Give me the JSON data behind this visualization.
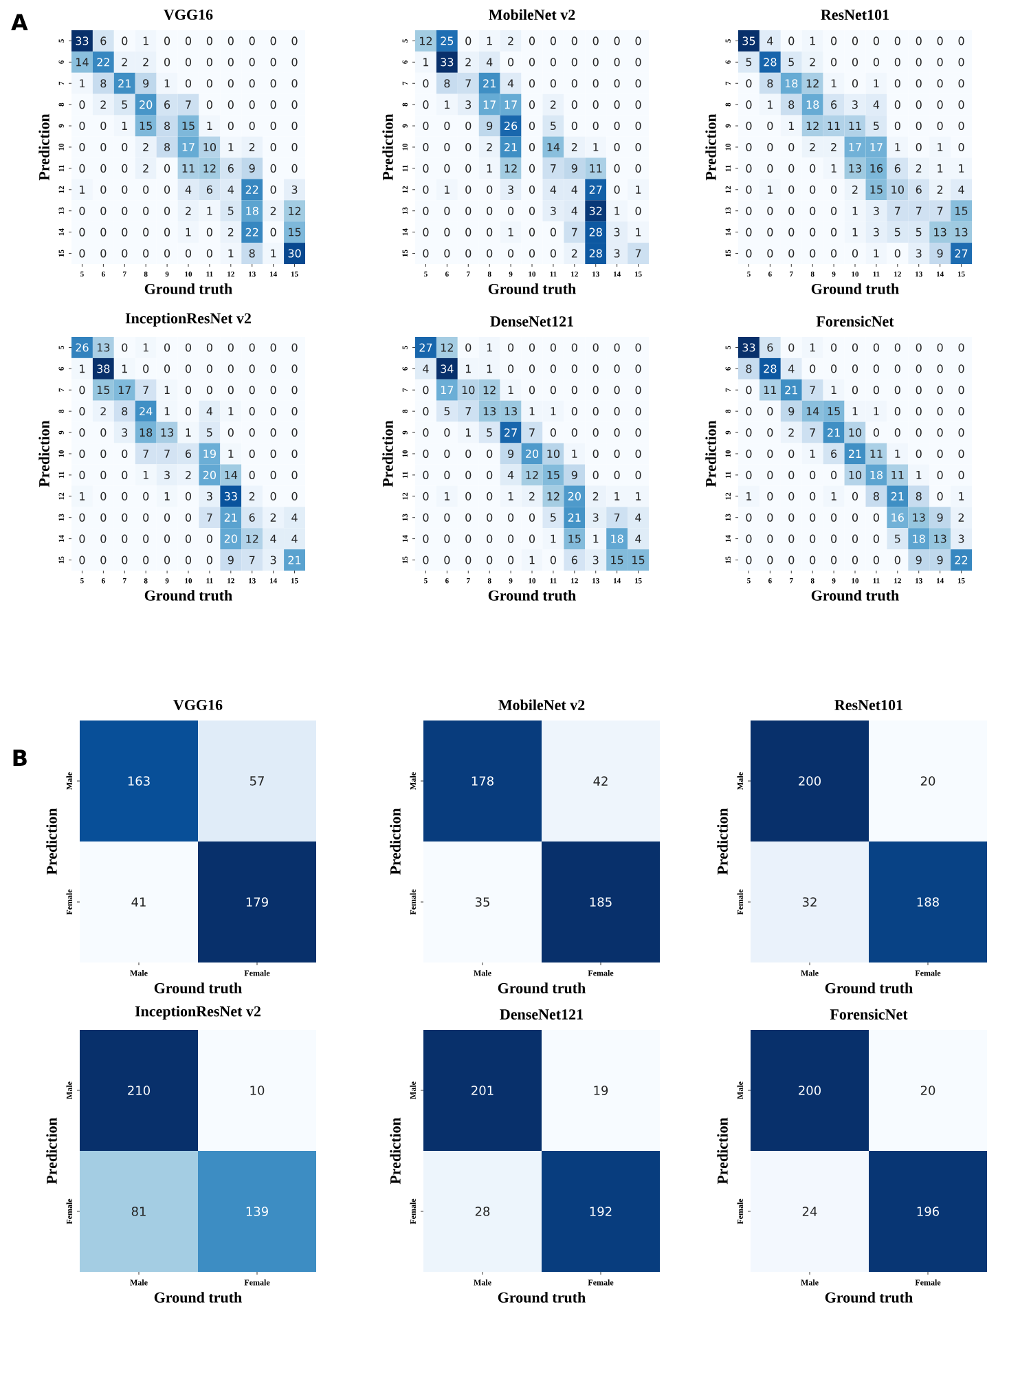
{
  "chart_data": [
    {
      "type": "heatmap",
      "title": "VGG16",
      "xlabel": "Ground truth",
      "ylabel": "Prediction",
      "annotations": [
        "A"
      ],
      "data_labels": true,
      "categories": [
        "5",
        "6",
        "7",
        "8",
        "9",
        "10",
        "11",
        "12",
        "13",
        "14",
        "15"
      ],
      "y_categories": [
        "5",
        "6",
        "7",
        "8",
        "9",
        "10",
        "11",
        "12",
        "13",
        "14",
        "15"
      ],
      "cells": [
        [
          33,
          6,
          0,
          1,
          0,
          0,
          0,
          0,
          0,
          0,
          0
        ],
        [
          14,
          22,
          2,
          2,
          0,
          0,
          0,
          0,
          0,
          0,
          0
        ],
        [
          1,
          8,
          21,
          9,
          1,
          0,
          0,
          0,
          0,
          0,
          0
        ],
        [
          0,
          2,
          5,
          20,
          6,
          7,
          0,
          0,
          0,
          0,
          0
        ],
        [
          0,
          0,
          1,
          15,
          8,
          15,
          1,
          0,
          0,
          0,
          0
        ],
        [
          0,
          0,
          0,
          2,
          8,
          17,
          10,
          1,
          2,
          0,
          0
        ],
        [
          0,
          0,
          0,
          2,
          0,
          11,
          12,
          6,
          9,
          0,
          0
        ],
        [
          1,
          0,
          0,
          0,
          0,
          4,
          6,
          4,
          22,
          0,
          3
        ],
        [
          0,
          0,
          0,
          0,
          0,
          2,
          1,
          5,
          18,
          2,
          12
        ],
        [
          0,
          0,
          0,
          0,
          0,
          1,
          0,
          2,
          22,
          0,
          15
        ],
        [
          0,
          0,
          0,
          0,
          0,
          0,
          0,
          1,
          8,
          1,
          30
        ]
      ]
    },
    {
      "type": "heatmap",
      "title": "MobileNet v2",
      "xlabel": "Ground truth",
      "ylabel": "Prediction",
      "data_labels": true,
      "categories": [
        "5",
        "6",
        "7",
        "8",
        "9",
        "10",
        "11",
        "12",
        "13",
        "14",
        "15"
      ],
      "y_categories": [
        "5",
        "6",
        "7",
        "8",
        "9",
        "10",
        "11",
        "12",
        "13",
        "14",
        "15"
      ],
      "cells": [
        [
          12,
          25,
          0,
          1,
          2,
          0,
          0,
          0,
          0,
          0,
          0
        ],
        [
          1,
          33,
          2,
          4,
          0,
          0,
          0,
          0,
          0,
          0,
          0
        ],
        [
          0,
          8,
          7,
          21,
          4,
          0,
          0,
          0,
          0,
          0,
          0
        ],
        [
          0,
          1,
          3,
          17,
          17,
          0,
          2,
          0,
          0,
          0,
          0
        ],
        [
          0,
          0,
          0,
          9,
          26,
          0,
          5,
          0,
          0,
          0,
          0
        ],
        [
          0,
          0,
          0,
          2,
          21,
          0,
          14,
          2,
          1,
          0,
          0
        ],
        [
          0,
          0,
          0,
          1,
          12,
          0,
          7,
          9,
          11,
          0,
          0
        ],
        [
          0,
          1,
          0,
          0,
          3,
          0,
          4,
          4,
          27,
          0,
          1
        ],
        [
          0,
          0,
          0,
          0,
          0,
          0,
          3,
          4,
          32,
          1,
          0
        ],
        [
          0,
          0,
          0,
          0,
          1,
          0,
          0,
          7,
          28,
          3,
          1
        ],
        [
          0,
          0,
          0,
          0,
          0,
          0,
          0,
          2,
          28,
          3,
          7
        ]
      ]
    },
    {
      "type": "heatmap",
      "title": "ResNet101",
      "xlabel": "Ground truth",
      "ylabel": "Prediction",
      "data_labels": true,
      "categories": [
        "5",
        "6",
        "7",
        "8",
        "9",
        "10",
        "11",
        "12",
        "13",
        "14",
        "15"
      ],
      "y_categories": [
        "5",
        "6",
        "7",
        "8",
        "9",
        "10",
        "11",
        "12",
        "13",
        "14",
        "15"
      ],
      "cells": [
        [
          35,
          4,
          0,
          1,
          0,
          0,
          0,
          0,
          0,
          0,
          0
        ],
        [
          5,
          28,
          5,
          2,
          0,
          0,
          0,
          0,
          0,
          0,
          0
        ],
        [
          0,
          8,
          18,
          12,
          1,
          0,
          1,
          0,
          0,
          0,
          0
        ],
        [
          0,
          1,
          8,
          18,
          6,
          3,
          4,
          0,
          0,
          0,
          0
        ],
        [
          0,
          0,
          1,
          12,
          11,
          11,
          5,
          0,
          0,
          0,
          0
        ],
        [
          0,
          0,
          0,
          2,
          2,
          17,
          17,
          1,
          0,
          1,
          0
        ],
        [
          0,
          0,
          0,
          0,
          1,
          13,
          16,
          6,
          2,
          1,
          1
        ],
        [
          0,
          1,
          0,
          0,
          0,
          2,
          15,
          10,
          6,
          2,
          4
        ],
        [
          0,
          0,
          0,
          0,
          0,
          1,
          3,
          7,
          7,
          7,
          15
        ],
        [
          0,
          0,
          0,
          0,
          0,
          1,
          3,
          5,
          5,
          13,
          13
        ],
        [
          0,
          0,
          0,
          0,
          0,
          0,
          1,
          0,
          3,
          9,
          27
        ]
      ]
    },
    {
      "type": "heatmap",
      "title": "InceptionResNet v2",
      "xlabel": "Ground truth",
      "ylabel": "Prediction",
      "data_labels": true,
      "categories": [
        "5",
        "6",
        "7",
        "8",
        "9",
        "10",
        "11",
        "12",
        "13",
        "14",
        "15"
      ],
      "y_categories": [
        "5",
        "6",
        "7",
        "8",
        "9",
        "10",
        "11",
        "12",
        "13",
        "14",
        "15"
      ],
      "cells": [
        [
          26,
          13,
          0,
          1,
          0,
          0,
          0,
          0,
          0,
          0,
          0
        ],
        [
          1,
          38,
          1,
          0,
          0,
          0,
          0,
          0,
          0,
          0,
          0
        ],
        [
          0,
          15,
          17,
          7,
          1,
          0,
          0,
          0,
          0,
          0,
          0
        ],
        [
          0,
          2,
          8,
          24,
          1,
          0,
          4,
          1,
          0,
          0,
          0
        ],
        [
          0,
          0,
          3,
          18,
          13,
          1,
          5,
          0,
          0,
          0,
          0
        ],
        [
          0,
          0,
          0,
          7,
          7,
          6,
          19,
          1,
          0,
          0,
          0
        ],
        [
          0,
          0,
          0,
          1,
          3,
          2,
          20,
          14,
          0,
          0,
          0
        ],
        [
          1,
          0,
          0,
          0,
          1,
          0,
          3,
          33,
          2,
          0,
          0
        ],
        [
          0,
          0,
          0,
          0,
          0,
          0,
          7,
          21,
          6,
          2,
          4
        ],
        [
          0,
          0,
          0,
          0,
          0,
          0,
          0,
          20,
          12,
          4,
          4
        ],
        [
          0,
          0,
          0,
          0,
          0,
          0,
          0,
          9,
          7,
          3,
          21
        ]
      ]
    },
    {
      "type": "heatmap",
      "title": "DenseNet121",
      "xlabel": "Ground truth",
      "ylabel": "Prediction",
      "data_labels": true,
      "categories": [
        "5",
        "6",
        "7",
        "8",
        "9",
        "10",
        "11",
        "12",
        "13",
        "14",
        "15"
      ],
      "y_categories": [
        "5",
        "6",
        "7",
        "8",
        "9",
        "10",
        "11",
        "12",
        "13",
        "14",
        "15"
      ],
      "cells": [
        [
          27,
          12,
          0,
          1,
          0,
          0,
          0,
          0,
          0,
          0,
          0
        ],
        [
          4,
          34,
          1,
          1,
          0,
          0,
          0,
          0,
          0,
          0,
          0
        ],
        [
          0,
          17,
          10,
          12,
          1,
          0,
          0,
          0,
          0,
          0,
          0
        ],
        [
          0,
          5,
          7,
          13,
          13,
          1,
          1,
          0,
          0,
          0,
          0
        ],
        [
          0,
          0,
          1,
          5,
          27,
          7,
          0,
          0,
          0,
          0,
          0
        ],
        [
          0,
          0,
          0,
          0,
          9,
          20,
          10,
          1,
          0,
          0,
          0
        ],
        [
          0,
          0,
          0,
          0,
          4,
          12,
          15,
          9,
          0,
          0,
          0
        ],
        [
          0,
          1,
          0,
          0,
          1,
          2,
          12,
          20,
          2,
          1,
          1
        ],
        [
          0,
          0,
          0,
          0,
          0,
          0,
          5,
          21,
          3,
          7,
          4
        ],
        [
          0,
          0,
          0,
          0,
          0,
          0,
          1,
          15,
          1,
          18,
          4
        ],
        [
          0,
          0,
          0,
          0,
          0,
          1,
          0,
          6,
          3,
          15,
          15
        ]
      ]
    },
    {
      "type": "heatmap",
      "title": "ForensicNet",
      "xlabel": "Ground truth",
      "ylabel": "Prediction",
      "data_labels": true,
      "categories": [
        "5",
        "6",
        "7",
        "8",
        "9",
        "10",
        "11",
        "12",
        "13",
        "14",
        "15"
      ],
      "y_categories": [
        "5",
        "6",
        "7",
        "8",
        "9",
        "10",
        "11",
        "12",
        "13",
        "14",
        "15"
      ],
      "cells": [
        [
          33,
          6,
          0,
          1,
          0,
          0,
          0,
          0,
          0,
          0,
          0
        ],
        [
          8,
          28,
          4,
          0,
          0,
          0,
          0,
          0,
          0,
          0,
          0
        ],
        [
          0,
          11,
          21,
          7,
          1,
          0,
          0,
          0,
          0,
          0,
          0
        ],
        [
          0,
          0,
          9,
          14,
          15,
          1,
          1,
          0,
          0,
          0,
          0
        ],
        [
          0,
          0,
          2,
          7,
          21,
          10,
          0,
          0,
          0,
          0,
          0
        ],
        [
          0,
          0,
          0,
          1,
          6,
          21,
          11,
          1,
          0,
          0,
          0
        ],
        [
          0,
          0,
          0,
          0,
          0,
          10,
          18,
          11,
          1,
          0,
          0
        ],
        [
          1,
          0,
          0,
          0,
          1,
          0,
          8,
          21,
          8,
          0,
          1
        ],
        [
          0,
          0,
          0,
          0,
          0,
          0,
          0,
          16,
          13,
          9,
          2
        ],
        [
          0,
          0,
          0,
          0,
          0,
          0,
          0,
          5,
          18,
          13,
          3
        ],
        [
          0,
          0,
          0,
          0,
          0,
          0,
          0,
          0,
          9,
          9,
          22
        ]
      ]
    },
    {
      "type": "heatmap",
      "title": "VGG16",
      "xlabel": "Ground truth",
      "ylabel": "Prediction",
      "annotations": [
        "B"
      ],
      "data_labels": true,
      "categories": [
        "Male",
        "Female"
      ],
      "y_categories": [
        "Male",
        "Female"
      ],
      "cells": [
        [
          163,
          57
        ],
        [
          41,
          179
        ]
      ]
    },
    {
      "type": "heatmap",
      "title": "MobileNet v2",
      "xlabel": "Ground truth",
      "ylabel": "Prediction",
      "data_labels": true,
      "categories": [
        "Male",
        "Female"
      ],
      "y_categories": [
        "Male",
        "Female"
      ],
      "cells": [
        [
          178,
          42
        ],
        [
          35,
          185
        ]
      ]
    },
    {
      "type": "heatmap",
      "title": "ResNet101",
      "xlabel": "Ground truth",
      "ylabel": "Prediction",
      "data_labels": true,
      "categories": [
        "Male",
        "Female"
      ],
      "y_categories": [
        "Male",
        "Female"
      ],
      "cells": [
        [
          200,
          20
        ],
        [
          32,
          188
        ]
      ]
    },
    {
      "type": "heatmap",
      "title": "InceptionResNet v2",
      "xlabel": "Ground truth",
      "ylabel": "Prediction",
      "data_labels": true,
      "categories": [
        "Male",
        "Female"
      ],
      "y_categories": [
        "Male",
        "Female"
      ],
      "cells": [
        [
          210,
          10
        ],
        [
          81,
          139
        ]
      ]
    },
    {
      "type": "heatmap",
      "title": "DenseNet121",
      "xlabel": "Ground truth",
      "ylabel": "Prediction",
      "data_labels": true,
      "categories": [
        "Male",
        "Female"
      ],
      "y_categories": [
        "Male",
        "Female"
      ],
      "cells": [
        [
          201,
          19
        ],
        [
          28,
          192
        ]
      ]
    },
    {
      "type": "heatmap",
      "title": "ForensicNet",
      "xlabel": "Ground truth",
      "ylabel": "Prediction",
      "data_labels": true,
      "categories": [
        "Male",
        "Female"
      ],
      "y_categories": [
        "Male",
        "Female"
      ],
      "cells": [
        [
          200,
          20
        ],
        [
          24,
          196
        ]
      ]
    }
  ]
}
